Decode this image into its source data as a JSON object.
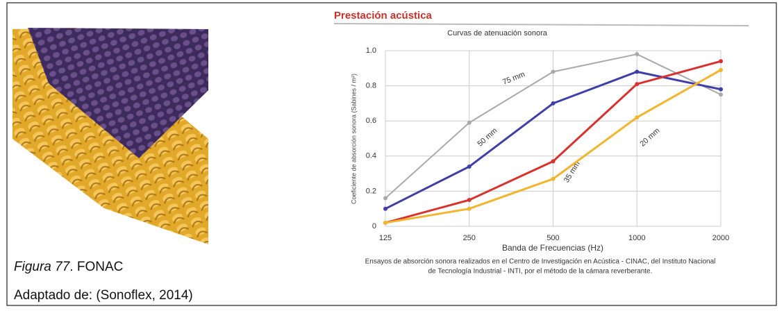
{
  "figure": {
    "caption_label": "Figura 77",
    "caption_text": ". FONAC",
    "source": "Adaptado de: (Sonoflex, 2014)"
  },
  "chart_data": {
    "type": "line",
    "heading": "Prestación acústica",
    "title": "Curvas de atenuación sonora",
    "x_label": "Banda de Frecuencias (Hz)",
    "y_label": "Coeficiente de absorción sonora (Sabines / m²)",
    "footnote": [
      "Ensayos de absorción sonora realizados en el Centro de Investigación en Acústica - CINAC, del Instituto Nacional",
      "de Tecnología Industrial - INTI, por el método de la cámara reverberante."
    ],
    "categories": [
      "125",
      "250",
      "500",
      "1000",
      "2000"
    ],
    "ylim": [
      0,
      1
    ],
    "yticks": [
      0,
      0.2,
      0.4,
      0.6,
      0.8,
      {
        "value": 1,
        "label": "1.0"
      }
    ],
    "grid": true,
    "series": [
      {
        "name": "75 mm",
        "color": "#a9a9a9",
        "values": [
          0.16,
          0.59,
          0.88,
          0.98,
          0.75
        ]
      },
      {
        "name": "50 mm",
        "color": "#3f3fa6",
        "values": [
          0.1,
          0.34,
          0.7,
          0.88,
          0.78
        ]
      },
      {
        "name": "35 mm",
        "color": "#d8322e",
        "values": [
          0.02,
          0.15,
          0.37,
          0.81,
          0.94
        ]
      },
      {
        "name": "20 mm",
        "color": "#f2b52e",
        "values": [
          0.02,
          0.1,
          0.27,
          0.62,
          0.89
        ]
      }
    ]
  }
}
